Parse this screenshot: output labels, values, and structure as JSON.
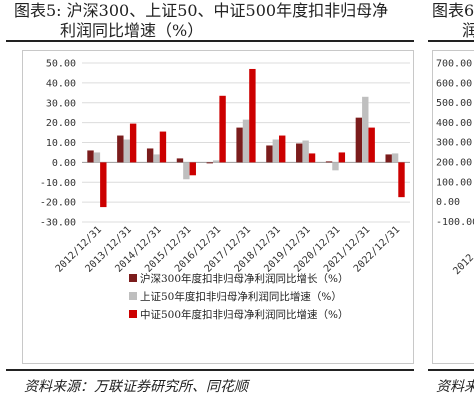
{
  "figure": {
    "title_line1": "图表5:  沪深300、上证50、中证500年度扣非归母净",
    "title_line2": "利润同比增速（%）",
    "source": "资料来源：万联证券研究所、同花顺"
  },
  "neighbor": {
    "title_line1": "图表6",
    "title_line2": "润",
    "source": "资料来",
    "ytick_labels": [
      "700.00",
      "600.00",
      "500.00",
      "400.00",
      "300.00",
      "200.00",
      "100.00",
      "0.00",
      "-100.00"
    ],
    "xtick_label": "2012"
  },
  "chart_data": {
    "type": "bar",
    "categories": [
      "2012/12/31",
      "2013/12/31",
      "2014/12/31",
      "2015/12/31",
      "2016/12/31",
      "2017/12/31",
      "2018/12/31",
      "2019/12/31",
      "2020/12/31",
      "2021/12/31",
      "2022/12/31"
    ],
    "series": [
      {
        "name": "沪深300年度扣非归母净利润同比增长（%）",
        "color": "#7b1c1c",
        "values": [
          6.0,
          13.5,
          7.0,
          2.0,
          -0.5,
          17.5,
          8.5,
          9.5,
          0.5,
          22.5,
          4.0
        ]
      },
      {
        "name": "上证50年度扣非归母净利润同比增速（%）",
        "color": "#bfbfbf",
        "values": [
          5.0,
          11.5,
          4.0,
          -8.5,
          1.0,
          21.5,
          11.5,
          11.0,
          -4.0,
          33.0,
          4.5
        ]
      },
      {
        "name": "中证500年度扣非归母净利润同比增速（%）",
        "color": "#cc0000",
        "values": [
          -22.5,
          19.5,
          15.5,
          -6.5,
          33.5,
          47.0,
          13.5,
          4.5,
          5.0,
          17.5,
          -17.5
        ]
      }
    ],
    "ylim": [
      -30,
      50
    ],
    "yticks": [
      50,
      40,
      30,
      20,
      10,
      0,
      -10,
      -20,
      -30
    ],
    "ytick_labels": [
      "50.00",
      "40.00",
      "30.00",
      "20.00",
      "10.00",
      "0.00",
      "-10.00",
      "-20.00",
      "-30.00"
    ],
    "grid": true,
    "legend": "bottom"
  }
}
